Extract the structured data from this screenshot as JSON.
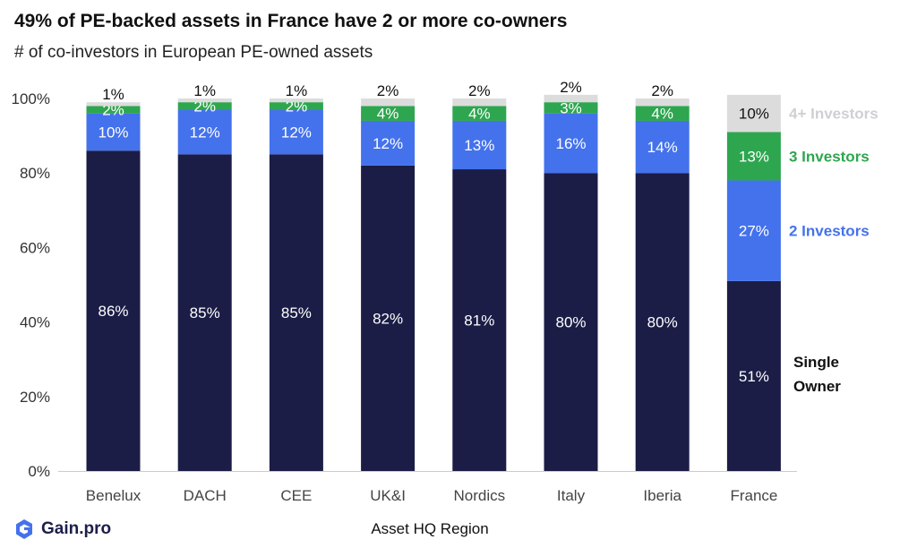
{
  "title": "49% of PE-backed assets in France have 2 or more co-owners",
  "subtitle": "# of co-investors in European PE-owned assets",
  "brand": {
    "name": "Gain.pro"
  },
  "chart_data": {
    "type": "bar",
    "stacked": true,
    "categories": [
      "Benelux",
      "DACH",
      "CEE",
      "UK&I",
      "Nordics",
      "Italy",
      "Iberia",
      "France"
    ],
    "xlabel": "Asset HQ Region",
    "ylabel": "",
    "ylim": [
      0,
      100
    ],
    "yticks": [
      "0%",
      "20%",
      "40%",
      "60%",
      "80%",
      "100%"
    ],
    "grid": false,
    "series": [
      {
        "name": "Single Owner",
        "color": "#1b1d46",
        "values": [
          86,
          85,
          85,
          82,
          81,
          80,
          80,
          51
        ],
        "labels": [
          "86%",
          "85%",
          "85%",
          "82%",
          "81%",
          "80%",
          "80%",
          "51%"
        ]
      },
      {
        "name": "2 Investors",
        "color": "#4472ec",
        "values": [
          10,
          12,
          12,
          12,
          13,
          16,
          14,
          27
        ],
        "labels": [
          "10%",
          "12%",
          "12%",
          "12%",
          "13%",
          "16%",
          "14%",
          "27%"
        ]
      },
      {
        "name": "3 Investors",
        "color": "#2ea64f",
        "values": [
          2,
          2,
          2,
          4,
          4,
          3,
          4,
          13
        ],
        "labels": [
          "2%",
          "2%",
          "2%",
          "4%",
          "4%",
          "3%",
          "4%",
          "13%"
        ]
      },
      {
        "name": "4+ Investors",
        "color": "#dcdcdc",
        "values": [
          1,
          1,
          1,
          2,
          2,
          2,
          2,
          10
        ],
        "labels": [
          "1%",
          "1%",
          "1%",
          "2%",
          "2%",
          "2%",
          "2%",
          "10%"
        ]
      }
    ],
    "legend": {
      "placement": "right, beside last bar",
      "items": [
        {
          "text": "4+ Investors",
          "color": "#cfcfd4"
        },
        {
          "text": "3 Investors",
          "color": "#2ea64f"
        },
        {
          "text": "2 Investors",
          "color": "#4472ec"
        },
        {
          "text": "Single Owner",
          "color": "#111111"
        }
      ]
    }
  }
}
